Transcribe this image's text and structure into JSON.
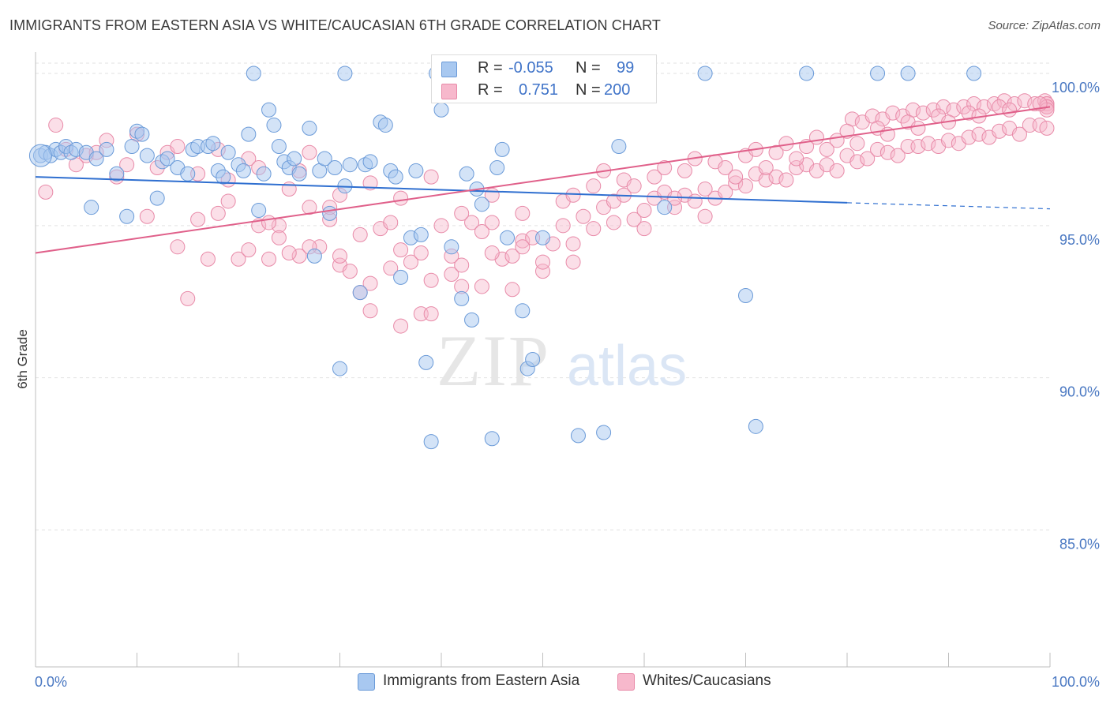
{
  "header": {
    "title": "IMMIGRANTS FROM EASTERN ASIA VS WHITE/CAUCASIAN 6TH GRADE CORRELATION CHART",
    "source": "Source: ZipAtlas.com"
  },
  "watermark": {
    "zip": "ZIP",
    "atlas": "atlas"
  },
  "legend": {
    "rows": [
      {
        "r_label": "R =",
        "r_value": "-0.055",
        "n_label": "N =",
        "n_value": "99",
        "color": "#a8c8f0"
      },
      {
        "r_label": "R =",
        "r_value": "0.751",
        "n_label": "N =",
        "n_value": "200",
        "color": "#f7b8cc"
      }
    ]
  },
  "bottom_legend": [
    {
      "label": "Immigrants from Eastern Asia",
      "color": "#a8c8f0"
    },
    {
      "label": "Whites/Caucasians",
      "color": "#f7b8cc"
    }
  ],
  "chart_data": {
    "type": "scatter",
    "title": "IMMIGRANTS FROM EASTERN ASIA VS WHITE/CAUCASIAN 6TH GRADE CORRELATION CHART",
    "xlabel": "",
    "ylabel": "6th Grade",
    "xlim": [
      0,
      100
    ],
    "ylim": [
      80.5,
      100.7
    ],
    "x_tick_labels": [
      "0.0%",
      "100.0%"
    ],
    "y_ticks": [
      85,
      90,
      95,
      100
    ],
    "y_tick_labels": [
      "85.0%",
      "90.0%",
      "95.0%",
      "100.0%"
    ],
    "grid": true,
    "colors": {
      "blue_fill": "#a8c8f0",
      "blue_stroke": "#6a9ad8",
      "blue_line": "#2f6fd0",
      "pink_fill": "#f7b8cc",
      "pink_stroke": "#e88aa8",
      "pink_line": "#e0608a"
    },
    "series": [
      {
        "name": "Immigrants from Eastern Asia",
        "r": -0.055,
        "n": 99,
        "trend": {
          "x0": 0,
          "y0": 96.6,
          "x1": 80,
          "y1": 95.75,
          "dash_to_x": 100,
          "dash_to_y": 95.55
        },
        "points": [
          [
            0.5,
            97.3
          ],
          [
            1.0,
            97.4
          ],
          [
            1.5,
            97.3
          ],
          [
            2.0,
            97.5
          ],
          [
            2.5,
            97.4
          ],
          [
            3.0,
            97.6
          ],
          [
            3.5,
            97.4
          ],
          [
            4.0,
            97.5
          ],
          [
            5.0,
            97.4
          ],
          [
            5.5,
            95.6
          ],
          [
            6.0,
            97.2
          ],
          [
            7.0,
            97.5
          ],
          [
            8.0,
            96.7
          ],
          [
            9.0,
            95.3
          ],
          [
            9.5,
            97.6
          ],
          [
            10.0,
            98.1
          ],
          [
            10.5,
            98.0
          ],
          [
            11.0,
            97.3
          ],
          [
            12.0,
            95.9
          ],
          [
            12.5,
            97.1
          ],
          [
            13.0,
            97.2
          ],
          [
            14.0,
            96.9
          ],
          [
            15.0,
            96.7
          ],
          [
            15.5,
            97.5
          ],
          [
            16.0,
            97.6
          ],
          [
            17.0,
            97.6
          ],
          [
            17.5,
            97.7
          ],
          [
            18.0,
            96.8
          ],
          [
            18.5,
            96.6
          ],
          [
            19.0,
            97.4
          ],
          [
            20.0,
            97.0
          ],
          [
            20.5,
            96.8
          ],
          [
            21.0,
            98.0
          ],
          [
            22.0,
            95.5
          ],
          [
            22.5,
            96.7
          ],
          [
            23.0,
            98.8
          ],
          [
            23.5,
            98.3
          ],
          [
            24.0,
            97.6
          ],
          [
            24.5,
            97.1
          ],
          [
            25.0,
            96.9
          ],
          [
            25.5,
            97.2
          ],
          [
            26.0,
            96.7
          ],
          [
            27.0,
            98.2
          ],
          [
            27.5,
            94.0
          ],
          [
            28.0,
            96.8
          ],
          [
            28.5,
            97.2
          ],
          [
            29.0,
            95.4
          ],
          [
            29.5,
            96.9
          ],
          [
            30.0,
            90.3
          ],
          [
            30.5,
            96.3
          ],
          [
            31.0,
            97.0
          ],
          [
            32.0,
            92.8
          ],
          [
            32.5,
            97.0
          ],
          [
            33.0,
            97.1
          ],
          [
            34.0,
            98.4
          ],
          [
            34.5,
            98.3
          ],
          [
            35.0,
            96.8
          ],
          [
            35.5,
            96.6
          ],
          [
            36.0,
            93.3
          ],
          [
            37.0,
            94.6
          ],
          [
            37.5,
            96.8
          ],
          [
            38.0,
            94.7
          ],
          [
            38.5,
            90.5
          ],
          [
            39.0,
            87.9
          ],
          [
            40.0,
            98.8
          ],
          [
            41.0,
            94.3
          ],
          [
            42.0,
            92.6
          ],
          [
            42.5,
            96.7
          ],
          [
            43.0,
            91.9
          ],
          [
            43.5,
            96.2
          ],
          [
            44.0,
            95.7
          ],
          [
            45.0,
            88.0
          ],
          [
            45.5,
            96.9
          ],
          [
            46.0,
            97.5
          ],
          [
            46.5,
            94.6
          ],
          [
            48.0,
            92.2
          ],
          [
            48.5,
            90.3
          ],
          [
            49.0,
            90.6
          ],
          [
            50.0,
            94.6
          ],
          [
            21.5,
            100.0
          ],
          [
            30.5,
            100.0
          ],
          [
            39.5,
            100.0
          ],
          [
            45.5,
            100.0
          ],
          [
            48.0,
            100.0
          ],
          [
            51.5,
            100.0
          ],
          [
            53.0,
            100.0
          ],
          [
            53.5,
            88.1
          ],
          [
            55.5,
            99.8
          ],
          [
            56.0,
            88.2
          ],
          [
            57.5,
            97.6
          ],
          [
            59.0,
            100.0
          ],
          [
            62.0,
            95.6
          ],
          [
            66.0,
            100.0
          ],
          [
            70.0,
            92.7
          ],
          [
            71.0,
            88.4
          ],
          [
            76.0,
            100.0
          ],
          [
            83.0,
            100.0
          ],
          [
            86.0,
            100.0
          ],
          [
            92.5,
            100.0
          ]
        ]
      },
      {
        "name": "Whites/Caucasians",
        "r": 0.751,
        "n": 200,
        "trend": {
          "x0": 0,
          "y0": 94.1,
          "x1": 100,
          "y1": 98.9
        },
        "points": [
          [
            1.0,
            96.1
          ],
          [
            2.0,
            98.3
          ],
          [
            3.0,
            97.5
          ],
          [
            4.0,
            97.0
          ],
          [
            5.0,
            97.3
          ],
          [
            6.0,
            97.4
          ],
          [
            7.0,
            97.8
          ],
          [
            8.0,
            96.6
          ],
          [
            9.0,
            97.0
          ],
          [
            10.0,
            98.0
          ],
          [
            11.0,
            95.3
          ],
          [
            12.0,
            96.9
          ],
          [
            13.0,
            97.4
          ],
          [
            14.0,
            94.3
          ],
          [
            15.0,
            92.6
          ],
          [
            16.0,
            96.7
          ],
          [
            17.0,
            93.9
          ],
          [
            18.0,
            95.4
          ],
          [
            19.0,
            95.8
          ],
          [
            20.0,
            93.9
          ],
          [
            21.0,
            97.2
          ],
          [
            22.0,
            95.0
          ],
          [
            23.0,
            93.9
          ],
          [
            24.0,
            95.0
          ],
          [
            25.0,
            96.2
          ],
          [
            26.0,
            94.0
          ],
          [
            27.0,
            95.6
          ],
          [
            28.0,
            94.3
          ],
          [
            29.0,
            95.2
          ],
          [
            30.0,
            93.7
          ],
          [
            31.0,
            93.5
          ],
          [
            32.0,
            92.8
          ],
          [
            33.0,
            93.1
          ],
          [
            34.0,
            94.9
          ],
          [
            35.0,
            95.1
          ],
          [
            36.0,
            94.2
          ],
          [
            37.0,
            93.8
          ],
          [
            38.0,
            92.1
          ],
          [
            39.0,
            93.2
          ],
          [
            40.0,
            95.0
          ],
          [
            41.0,
            93.4
          ],
          [
            42.0,
            93.7
          ],
          [
            43.0,
            95.1
          ],
          [
            44.0,
            94.8
          ],
          [
            45.0,
            96.0
          ],
          [
            46.0,
            93.9
          ],
          [
            47.0,
            94.0
          ],
          [
            48.0,
            94.5
          ],
          [
            49.0,
            94.6
          ],
          [
            50.0,
            93.5
          ],
          [
            51.0,
            94.4
          ],
          [
            52.0,
            95.0
          ],
          [
            53.0,
            93.8
          ],
          [
            54.0,
            95.3
          ],
          [
            55.0,
            94.9
          ],
          [
            56.0,
            95.6
          ],
          [
            57.0,
            95.8
          ],
          [
            58.0,
            96.0
          ],
          [
            59.0,
            95.2
          ],
          [
            60.0,
            94.9
          ],
          [
            61.0,
            95.9
          ],
          [
            62.0,
            96.1
          ],
          [
            63.0,
            95.6
          ],
          [
            64.0,
            96.0
          ],
          [
            65.0,
            95.8
          ],
          [
            66.0,
            95.3
          ],
          [
            67.0,
            95.9
          ],
          [
            68.0,
            96.1
          ],
          [
            69.0,
            96.4
          ],
          [
            70.0,
            96.3
          ],
          [
            71.0,
            96.7
          ],
          [
            72.0,
            96.5
          ],
          [
            73.0,
            96.6
          ],
          [
            74.0,
            96.5
          ],
          [
            75.0,
            96.9
          ],
          [
            76.0,
            97.0
          ],
          [
            77.0,
            96.8
          ],
          [
            78.0,
            97.0
          ],
          [
            79.0,
            96.8
          ],
          [
            80.0,
            97.3
          ],
          [
            81.0,
            97.1
          ],
          [
            82.0,
            97.2
          ],
          [
            83.0,
            97.5
          ],
          [
            84.0,
            97.4
          ],
          [
            85.0,
            97.3
          ],
          [
            86.0,
            97.6
          ],
          [
            87.0,
            97.6
          ],
          [
            88.0,
            97.7
          ],
          [
            89.0,
            97.6
          ],
          [
            90.0,
            97.8
          ],
          [
            91.0,
            97.7
          ],
          [
            92.0,
            97.9
          ],
          [
            93.0,
            98.0
          ],
          [
            94.0,
            97.9
          ],
          [
            95.0,
            98.1
          ],
          [
            96.0,
            98.2
          ],
          [
            97.0,
            98.0
          ],
          [
            98.0,
            98.3
          ],
          [
            99.0,
            98.3
          ],
          [
            100.0,
            98.2
          ],
          [
            18.0,
            97.5
          ],
          [
            22.0,
            96.9
          ],
          [
            27.0,
            97.4
          ],
          [
            30.0,
            96.0
          ],
          [
            33.0,
            96.4
          ],
          [
            36.0,
            95.9
          ],
          [
            39.0,
            96.6
          ],
          [
            42.0,
            95.4
          ],
          [
            45.0,
            95.1
          ],
          [
            48.0,
            95.4
          ],
          [
            52.0,
            95.8
          ],
          [
            55.0,
            96.3
          ],
          [
            58.0,
            96.5
          ],
          [
            61.0,
            96.6
          ],
          [
            64.0,
            96.8
          ],
          [
            67.0,
            97.1
          ],
          [
            70.0,
            97.3
          ],
          [
            73.0,
            97.4
          ],
          [
            76.0,
            97.6
          ],
          [
            79.0,
            97.8
          ],
          [
            80.5,
            98.5
          ],
          [
            81.5,
            98.4
          ],
          [
            82.5,
            98.6
          ],
          [
            83.5,
            98.5
          ],
          [
            84.5,
            98.7
          ],
          [
            85.5,
            98.6
          ],
          [
            86.5,
            98.8
          ],
          [
            87.5,
            98.7
          ],
          [
            88.5,
            98.8
          ],
          [
            89.5,
            98.9
          ],
          [
            90.5,
            98.8
          ],
          [
            91.5,
            98.9
          ],
          [
            92.5,
            99.0
          ],
          [
            93.5,
            98.9
          ],
          [
            94.5,
            99.0
          ],
          [
            95.5,
            99.1
          ],
          [
            96.5,
            99.0
          ],
          [
            97.5,
            99.1
          ],
          [
            98.5,
            99.0
          ],
          [
            99.5,
            99.1
          ],
          [
            100.5,
            99.0
          ],
          [
            101.5,
            98.9
          ],
          [
            102.5,
            99.0
          ],
          [
            103.5,
            98.9
          ],
          [
            104.5,
            98.8
          ],
          [
            53.0,
            96.0
          ],
          [
            56.0,
            96.8
          ],
          [
            59.0,
            96.3
          ],
          [
            62.0,
            96.9
          ],
          [
            65.0,
            97.2
          ],
          [
            68.0,
            96.9
          ],
          [
            71.0,
            97.5
          ],
          [
            74.0,
            97.7
          ],
          [
            77.0,
            97.9
          ],
          [
            80.0,
            98.1
          ],
          [
            83.0,
            98.2
          ],
          [
            86.0,
            98.4
          ],
          [
            89.0,
            98.6
          ],
          [
            92.0,
            98.7
          ],
          [
            95.0,
            98.9
          ],
          [
            26.0,
            96.8
          ],
          [
            29.0,
            95.6
          ],
          [
            32.0,
            94.7
          ],
          [
            35.0,
            93.6
          ],
          [
            38.0,
            94.1
          ],
          [
            41.0,
            94.0
          ],
          [
            44.0,
            93.0
          ],
          [
            47.0,
            92.9
          ],
          [
            50.0,
            93.8
          ],
          [
            53.0,
            94.4
          ],
          [
            21.0,
            94.2
          ],
          [
            24.0,
            94.6
          ],
          [
            27.0,
            94.3
          ],
          [
            30.0,
            94.0
          ],
          [
            33.0,
            92.2
          ],
          [
            36.0,
            91.7
          ],
          [
            39.0,
            92.1
          ],
          [
            42.0,
            93.0
          ],
          [
            45.0,
            94.1
          ],
          [
            48.0,
            94.3
          ],
          [
            57.0,
            95.1
          ],
          [
            60.0,
            95.5
          ],
          [
            63.0,
            95.9
          ],
          [
            66.0,
            96.2
          ],
          [
            69.0,
            96.6
          ],
          [
            72.0,
            96.9
          ],
          [
            75.0,
            97.2
          ],
          [
            78.0,
            97.5
          ],
          [
            81.0,
            97.7
          ],
          [
            84.0,
            98.0
          ],
          [
            87.0,
            98.2
          ],
          [
            90.0,
            98.4
          ],
          [
            93.0,
            98.6
          ],
          [
            96.0,
            98.8
          ],
          [
            99.0,
            99.0
          ],
          [
            14.0,
            97.6
          ],
          [
            16.0,
            95.2
          ],
          [
            19.0,
            96.5
          ],
          [
            23.0,
            95.1
          ],
          [
            25.0,
            94.1
          ]
        ]
      }
    ]
  }
}
